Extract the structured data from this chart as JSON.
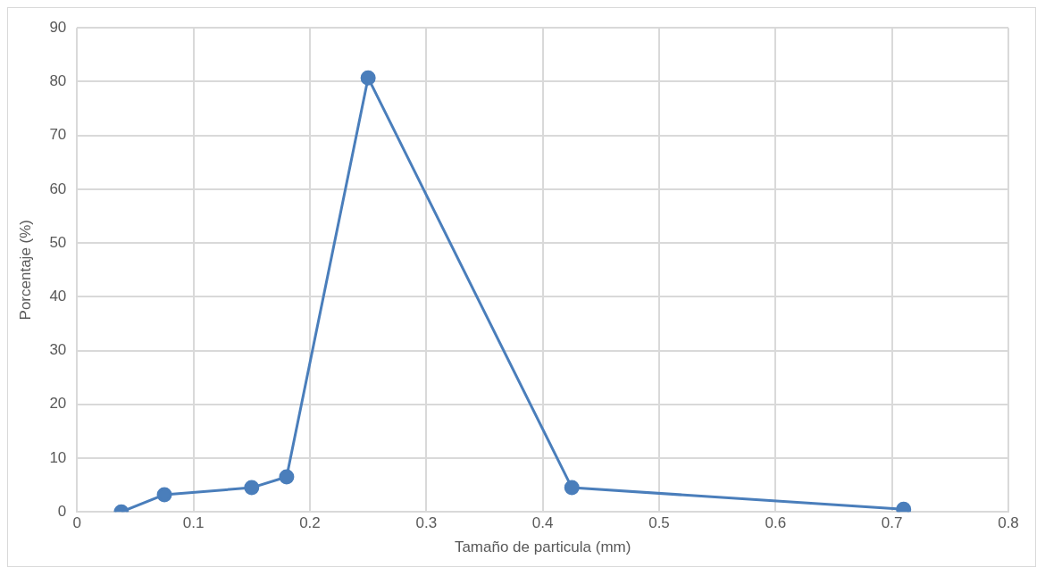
{
  "chart_data": {
    "type": "line",
    "xlabel": "Tamaño de particula (mm)",
    "ylabel": "Porcentaje (%)",
    "x": [
      0.038,
      0.075,
      0.15,
      0.18,
      0.25,
      0.425,
      0.71
    ],
    "series": [
      {
        "color": "#4a7ebb",
        "values": [
          0,
          3.2,
          4.5,
          6.5,
          80.7,
          4.5,
          0.5
        ]
      }
    ],
    "xlim": [
      0,
      0.8
    ],
    "xticks": [
      0,
      0.1,
      0.2,
      0.3,
      0.4,
      0.5,
      0.6,
      0.7,
      0.8
    ],
    "ylim": [
      0,
      90
    ],
    "yticks": [
      0,
      10,
      20,
      30,
      40,
      50,
      60,
      70,
      80,
      90
    ],
    "grid": true,
    "legend": false,
    "marker": "circle",
    "line_style": "solid"
  }
}
